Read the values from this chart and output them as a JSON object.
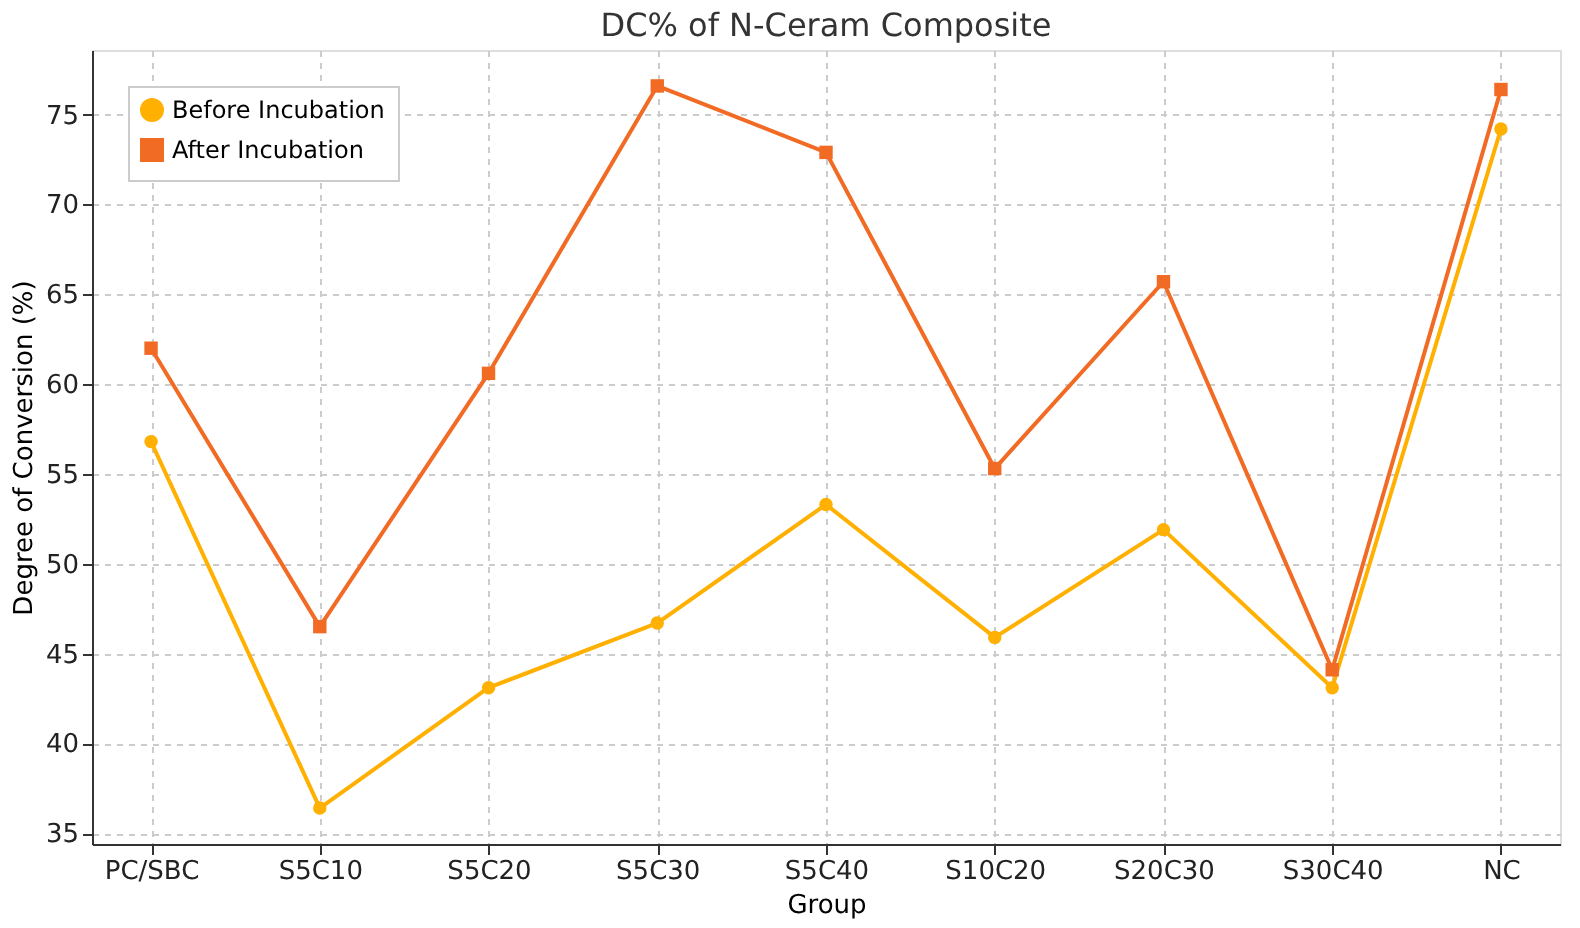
{
  "chart_data": {
    "type": "line",
    "title": "DC% of N-Ceram Composite",
    "xlabel": "Group",
    "ylabel": "Degree of Conversion (%)",
    "categories": [
      "PC/SBC",
      "S5C10",
      "S5C20",
      "S5C30",
      "S5C40",
      "S10C20",
      "S20C30",
      "S30C40",
      "NC"
    ],
    "series": [
      {
        "name": "Before Incubation",
        "color": "#ffb000",
        "marker": "circle",
        "values": [
          56.8,
          36.4,
          43.1,
          46.7,
          53.3,
          45.9,
          51.9,
          43.1,
          74.2
        ]
      },
      {
        "name": "After Incubation",
        "color": "#f26b25",
        "marker": "square",
        "values": [
          62.0,
          46.5,
          60.6,
          76.6,
          72.9,
          55.3,
          65.7,
          44.1,
          76.4
        ]
      }
    ],
    "ylim": [
      34.4,
      78.6
    ],
    "yticks": [
      35,
      40,
      45,
      50,
      55,
      60,
      65,
      70,
      75
    ],
    "grid": true,
    "legend": "top left",
    "line_style": "solid"
  }
}
